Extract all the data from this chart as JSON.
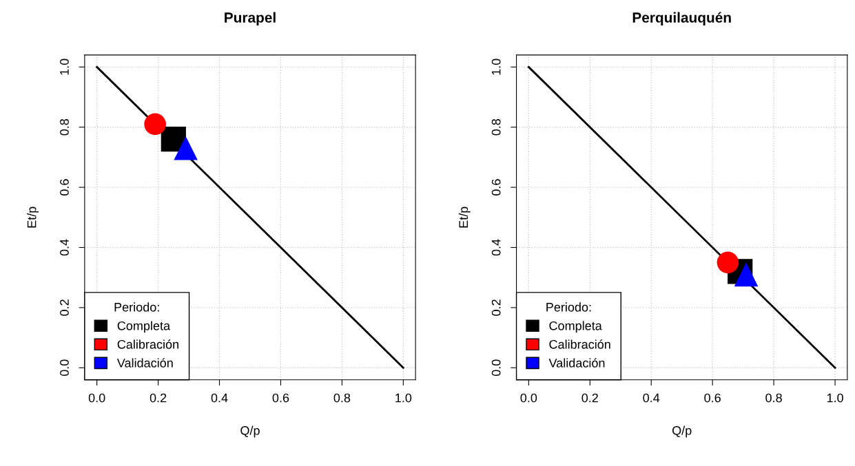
{
  "chart_data": [
    {
      "type": "scatter",
      "title": "Purapel",
      "xlabel": "Q/p",
      "ylabel": "Et/p",
      "legend_title": "Periodo:",
      "legend": "bottom left",
      "grid": true,
      "xlim": [
        -0.04,
        1.04
      ],
      "ylim": [
        -0.04,
        1.04
      ],
      "xticks": [
        {
          "value": 0,
          "label": "0.0"
        },
        {
          "value": 0.2,
          "label": "0.2"
        },
        {
          "value": 0.4,
          "label": "0.4"
        },
        {
          "value": 0.6,
          "label": "0.6"
        },
        {
          "value": 0.8,
          "label": "0.8"
        },
        {
          "value": 1,
          "label": "1.0"
        }
      ],
      "yticks": [
        {
          "value": 0,
          "label": "0.0"
        },
        {
          "value": 0.2,
          "label": "0.2"
        },
        {
          "value": 0.4,
          "label": "0.4"
        },
        {
          "value": 0.6,
          "label": "0.6"
        },
        {
          "value": 0.8,
          "label": "0.8"
        },
        {
          "value": 1,
          "label": "1.0"
        }
      ],
      "series": [
        {
          "type": "line",
          "color": "#000000",
          "x": [
            0,
            1
          ],
          "values": [
            1,
            0
          ],
          "line_style": "solid",
          "marker": "none"
        },
        {
          "name": "Completa",
          "color": "#000000",
          "marker": "square",
          "x": [
            0.25
          ],
          "values": [
            0.76
          ]
        },
        {
          "name": "Calibración",
          "color": "#ff0000",
          "marker": "circle",
          "x": [
            0.19
          ],
          "values": [
            0.81
          ]
        },
        {
          "name": "Validación",
          "color": "#0000ff",
          "marker": "triangle",
          "x": [
            0.29
          ],
          "values": [
            0.73
          ]
        }
      ]
    },
    {
      "type": "scatter",
      "title": "Perquilauquén",
      "xlabel": "Q/p",
      "ylabel": "Et/p",
      "legend_title": "Periodo:",
      "legend": "bottom left",
      "grid": true,
      "xlim": [
        -0.04,
        1.04
      ],
      "ylim": [
        -0.04,
        1.04
      ],
      "xticks": [
        {
          "value": 0,
          "label": "0.0"
        },
        {
          "value": 0.2,
          "label": "0.2"
        },
        {
          "value": 0.4,
          "label": "0.4"
        },
        {
          "value": 0.6,
          "label": "0.6"
        },
        {
          "value": 0.8,
          "label": "0.8"
        },
        {
          "value": 1,
          "label": "1.0"
        }
      ],
      "yticks": [
        {
          "value": 0,
          "label": "0.0"
        },
        {
          "value": 0.2,
          "label": "0.2"
        },
        {
          "value": 0.4,
          "label": "0.4"
        },
        {
          "value": 0.6,
          "label": "0.6"
        },
        {
          "value": 0.8,
          "label": "0.8"
        },
        {
          "value": 1,
          "label": "1.0"
        }
      ],
      "series": [
        {
          "type": "line",
          "color": "#000000",
          "x": [
            0,
            1
          ],
          "values": [
            1,
            0
          ],
          "line_style": "solid",
          "marker": "none"
        },
        {
          "name": "Completa",
          "color": "#000000",
          "marker": "square",
          "x": [
            0.69
          ],
          "values": [
            0.32
          ]
        },
        {
          "name": "Calibración",
          "color": "#ff0000",
          "marker": "circle",
          "x": [
            0.65
          ],
          "values": [
            0.35
          ]
        },
        {
          "name": "Validación",
          "color": "#0000ff",
          "marker": "triangle",
          "x": [
            0.71
          ],
          "values": [
            0.31
          ]
        }
      ]
    }
  ]
}
